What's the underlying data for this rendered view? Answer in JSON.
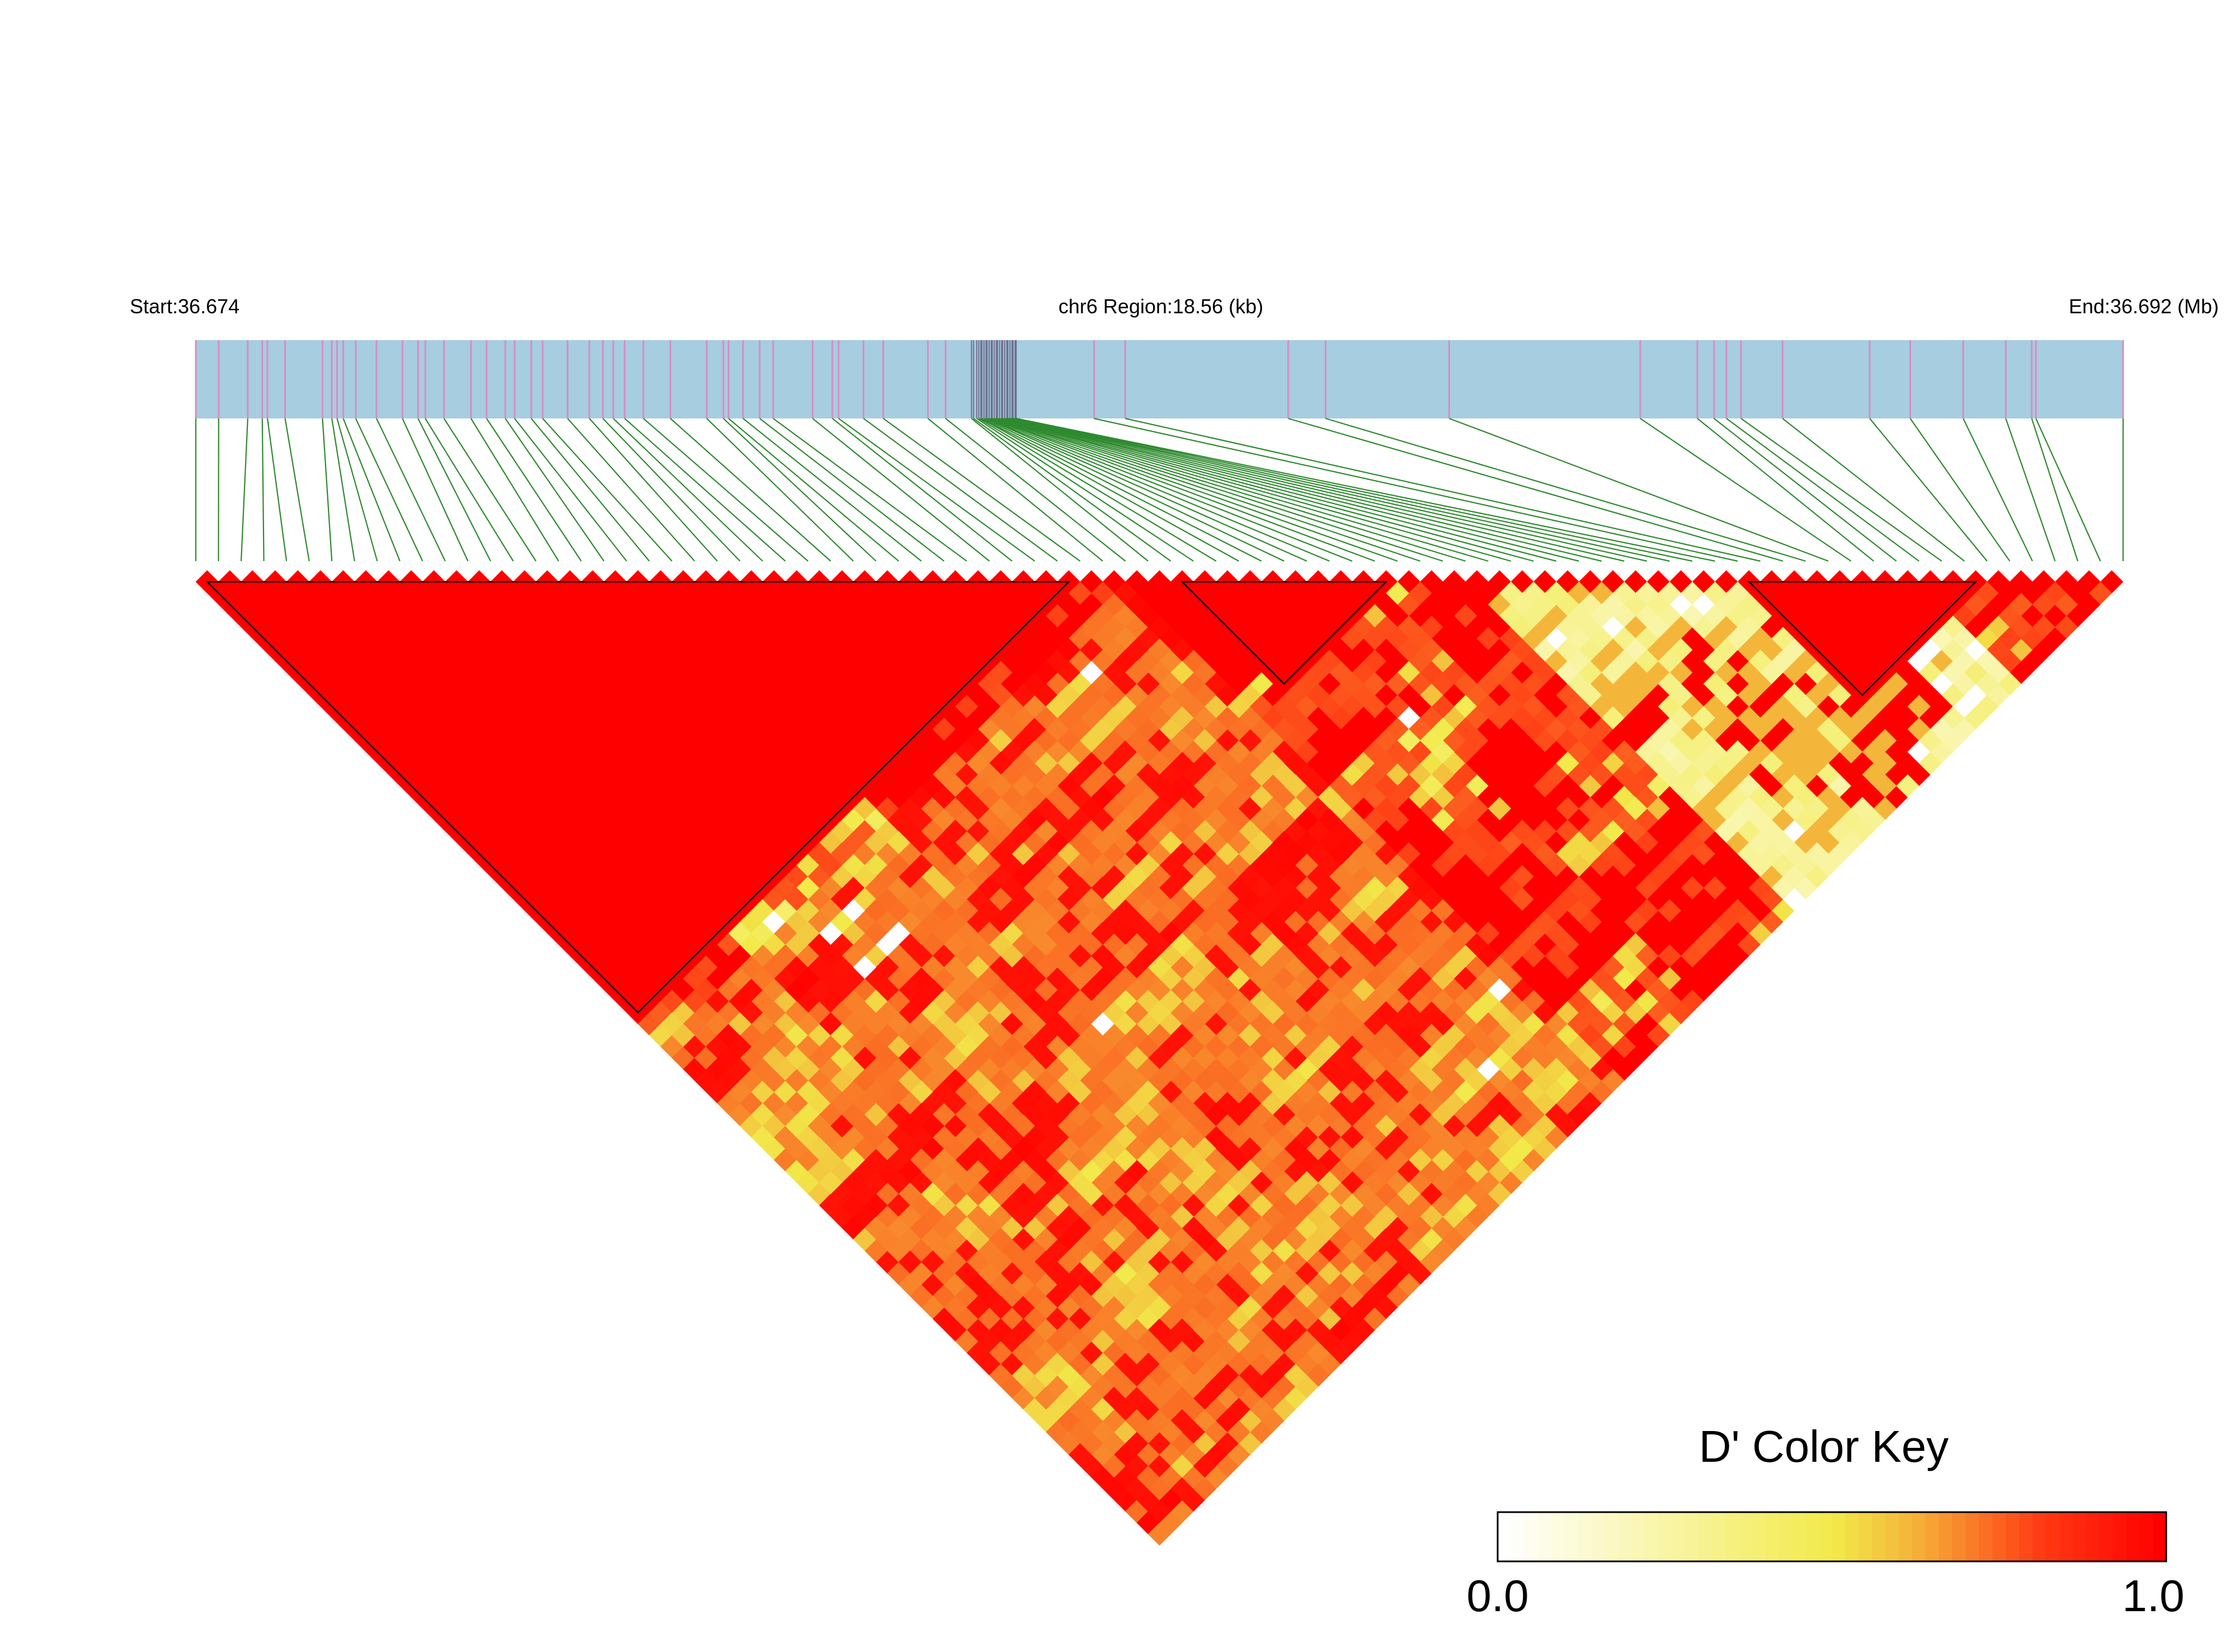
{
  "chart_data": {
    "type": "heatmap",
    "subtype": "LD block heatmap (triangle)",
    "chromosome": "chr6",
    "header": {
      "start_label": "Start:36.674",
      "region_label": "chr6 Region:18.56 (kb)",
      "end_label": "End:36.692 (Mb)"
    },
    "start_mb": 36.674,
    "end_mb": 36.692,
    "region_kb": 18.56,
    "snp_count": 86,
    "snp_positions_kb": [
      0,
      0.22,
      0.5,
      0.64,
      0.69,
      0.86,
      1.22,
      1.31,
      1.36,
      1.42,
      1.54,
      1.74,
      1.99,
      2.14,
      2.21,
      2.39,
      2.65,
      2.8,
      2.98,
      3.07,
      3.23,
      3.34,
      3.58,
      3.79,
      3.92,
      4.02,
      4.13,
      4.31,
      4.57,
      4.92,
      5.08,
      5.13,
      5.27,
      5.43,
      5.56,
      5.94,
      6.13,
      6.19,
      6.43,
      6.62,
      7.05,
      7.22,
      7.47,
      7.49,
      7.52,
      7.54,
      7.56,
      7.57,
      7.59,
      7.61,
      7.62,
      7.64,
      7.66,
      7.67,
      7.69,
      7.71,
      7.72,
      7.74,
      7.76,
      7.77,
      7.79,
      7.81,
      7.82,
      7.84,
      7.86,
      7.87,
      7.89,
      7.9,
      8.65,
      8.95,
      10.52,
      10.88,
      12.07,
      13.91,
      14.46,
      14.62,
      14.74,
      14.88,
      15.28,
      16.12,
      16.51,
      17.02,
      17.43,
      17.68,
      17.72,
      18.56
    ],
    "ld_blocks": [
      {
        "block": 1,
        "from_snp": 1,
        "to_snp": 40
      },
      {
        "block": 2,
        "from_snp": 41,
        "to_snp": 42
      },
      {
        "block": 3,
        "from_snp": 44,
        "to_snp": 54
      },
      {
        "block": 4,
        "from_snp": 63,
        "to_snp": 64
      },
      {
        "block": 5,
        "from_snp": 69,
        "to_snp": 80
      },
      {
        "block": 6,
        "from_snp": 81,
        "to_snp": 82
      }
    ],
    "ld_pairs": "D' for all 3655 SNP pairs; sampled as red (1.0) inside blocks with mixed 0.0-1.0 values elsewhere",
    "color_key": {
      "title": "D' Color Key",
      "min_label": "0.0",
      "max_label": "1.0",
      "min": 0.0,
      "max": 1.0,
      "stops": [
        "#ffffff",
        "#f2ea4a",
        "#f4b63a",
        "#ff3a14",
        "#ff0000"
      ]
    },
    "colors": {
      "gene_bar": "#a6cde0",
      "snp_tick": "#d98cc4",
      "connector": "#2f8a2f",
      "block_outline": "#000000",
      "high_ld": "#ff0000"
    }
  }
}
